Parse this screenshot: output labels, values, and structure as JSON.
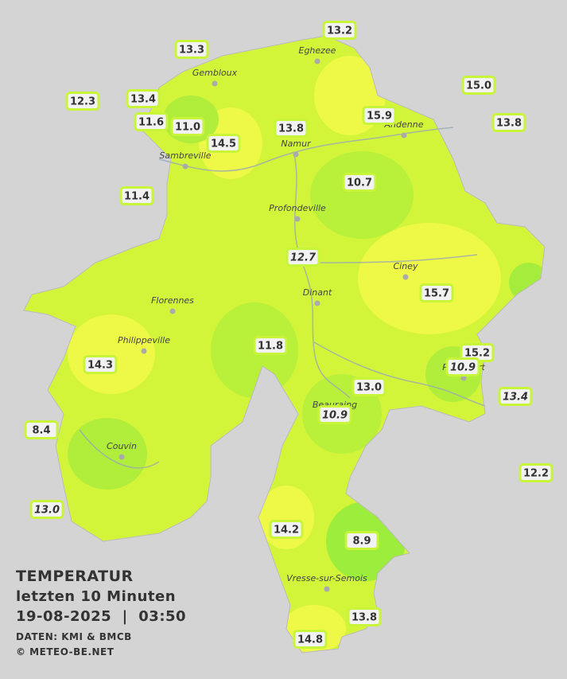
{
  "legend_block": {
    "title": "TEMPERATUR",
    "period": "letzten 10 Minuten",
    "datetime": "19-08-2025  |  03:50",
    "source": "DATEN: KMI & BMCB",
    "copyright": "© METEO-BE.NET"
  },
  "cities": [
    "Eghezee",
    "Gembloux",
    "Andenne",
    "Namur",
    "Sambreville",
    "Profondeville",
    "Ciney",
    "Dinant",
    "Florennes",
    "Philippeville",
    "Rochefort",
    "Beauraing",
    "Couvin",
    "Vresse-sur-Semois"
  ],
  "stations": [
    "13.2",
    "13.3",
    "12.3",
    "13.4",
    "15.0",
    "11.6",
    "11.0",
    "14.5",
    "13.8",
    "15.9",
    "13.8",
    "10.7",
    "11.4",
    "12.7",
    "15.7",
    "11.8",
    "15.2",
    "10.9",
    "14.3",
    "13.0",
    "13.4",
    "10.9",
    "8.4",
    "12.2",
    "13.0",
    "14.2",
    "8.9",
    "13.8",
    "14.8"
  ]
}
